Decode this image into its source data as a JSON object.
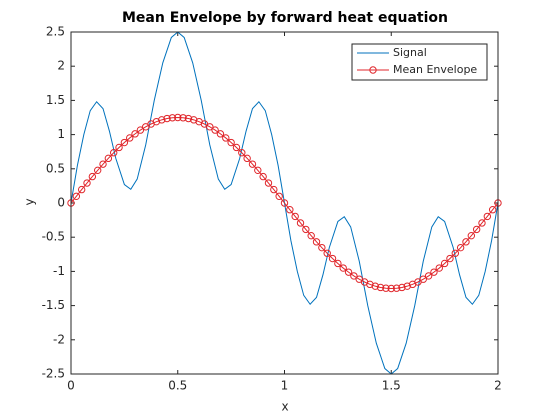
{
  "chart_data": {
    "type": "line",
    "title": "Mean Envelope by forward heat equation",
    "xlabel": "x",
    "ylabel": "y",
    "xlim": [
      0,
      2
    ],
    "ylim": [
      -2.5,
      2.5
    ],
    "xticks": [
      0,
      0.5,
      1,
      1.5,
      2
    ],
    "yticks": [
      -2.5,
      -2,
      -1.5,
      -1,
      -0.5,
      0,
      0.5,
      1,
      1.5,
      2,
      2.5
    ],
    "grid": false,
    "legend": "top-right",
    "series": [
      {
        "name": "Signal",
        "color": "#0072bd",
        "marker": "none",
        "x": [
          0,
          0.03,
          0.06,
          0.09,
          0.12,
          0.15,
          0.18,
          0.21,
          0.25,
          0.28,
          0.31,
          0.35,
          0.39,
          0.43,
          0.47,
          0.5,
          0.53,
          0.57,
          0.61,
          0.65,
          0.69,
          0.72,
          0.75,
          0.79,
          0.82,
          0.85,
          0.88,
          0.91,
          0.94,
          0.97,
          1,
          1.03,
          1.06,
          1.09,
          1.12,
          1.15,
          1.18,
          1.21,
          1.25,
          1.28,
          1.31,
          1.35,
          1.39,
          1.43,
          1.47,
          1.5,
          1.53,
          1.57,
          1.61,
          1.65,
          1.69,
          1.72,
          1.75,
          1.79,
          1.82,
          1.85,
          1.88,
          1.91,
          1.94,
          1.97,
          2
        ],
        "values": [
          0,
          0.55,
          1.0,
          1.35,
          1.48,
          1.38,
          1.05,
          0.65,
          0.27,
          0.2,
          0.35,
          0.85,
          1.5,
          2.05,
          2.42,
          2.5,
          2.42,
          2.05,
          1.5,
          0.85,
          0.35,
          0.2,
          0.27,
          0.65,
          1.05,
          1.38,
          1.48,
          1.35,
          1.0,
          0.55,
          0,
          -0.55,
          -1.0,
          -1.35,
          -1.48,
          -1.38,
          -1.05,
          -0.65,
          -0.27,
          -0.2,
          -0.35,
          -0.85,
          -1.5,
          -2.05,
          -2.42,
          -2.5,
          -2.42,
          -2.05,
          -1.5,
          -0.85,
          -0.35,
          -0.2,
          -0.27,
          -0.65,
          -1.05,
          -1.38,
          -1.48,
          -1.35,
          -1.0,
          -0.55,
          0
        ]
      },
      {
        "name": "Mean Envelope",
        "color": "#e0262b",
        "marker": "circle",
        "x": [
          0,
          0.025,
          0.05,
          0.075,
          0.1,
          0.125,
          0.15,
          0.175,
          0.2,
          0.225,
          0.25,
          0.275,
          0.3,
          0.325,
          0.35,
          0.375,
          0.4,
          0.425,
          0.45,
          0.475,
          0.5,
          0.525,
          0.55,
          0.575,
          0.6,
          0.625,
          0.65,
          0.675,
          0.7,
          0.725,
          0.75,
          0.775,
          0.8,
          0.825,
          0.85,
          0.875,
          0.9,
          0.925,
          0.95,
          0.975,
          1,
          1.025,
          1.05,
          1.075,
          1.1,
          1.125,
          1.15,
          1.175,
          1.2,
          1.225,
          1.25,
          1.275,
          1.3,
          1.325,
          1.35,
          1.375,
          1.4,
          1.425,
          1.45,
          1.475,
          1.5,
          1.525,
          1.55,
          1.575,
          1.6,
          1.625,
          1.65,
          1.675,
          1.7,
          1.725,
          1.75,
          1.775,
          1.8,
          1.825,
          1.85,
          1.875,
          1.9,
          1.925,
          1.95,
          1.975,
          2
        ],
        "values": [
          0,
          0.098,
          0.196,
          0.292,
          0.386,
          0.478,
          0.568,
          0.653,
          0.735,
          0.812,
          0.884,
          0.951,
          1.011,
          1.066,
          1.114,
          1.155,
          1.189,
          1.216,
          1.235,
          1.246,
          1.25,
          1.246,
          1.235,
          1.216,
          1.189,
          1.155,
          1.114,
          1.066,
          1.011,
          0.951,
          0.884,
          0.812,
          0.735,
          0.653,
          0.568,
          0.478,
          0.386,
          0.292,
          0.196,
          0.098,
          0,
          -0.098,
          -0.196,
          -0.292,
          -0.386,
          -0.478,
          -0.568,
          -0.653,
          -0.735,
          -0.812,
          -0.884,
          -0.951,
          -1.011,
          -1.066,
          -1.114,
          -1.155,
          -1.189,
          -1.216,
          -1.235,
          -1.246,
          -1.25,
          -1.246,
          -1.235,
          -1.216,
          -1.189,
          -1.155,
          -1.114,
          -1.066,
          -1.011,
          -0.951,
          -0.884,
          -0.812,
          -0.735,
          -0.653,
          -0.568,
          -0.478,
          -0.386,
          -0.292,
          -0.196,
          -0.098,
          0
        ]
      }
    ]
  }
}
